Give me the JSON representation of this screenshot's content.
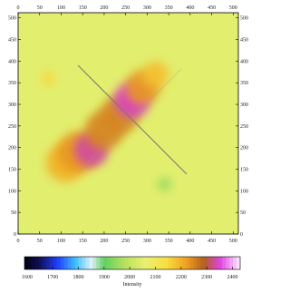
{
  "chart_data": {
    "type": "image",
    "xlim": [
      0,
      512
    ],
    "ylim": [
      0,
      512
    ],
    "xticks": [
      0,
      50,
      100,
      150,
      200,
      250,
      300,
      350,
      400,
      450,
      500
    ],
    "yticks": [
      0,
      50,
      100,
      150,
      200,
      250,
      300,
      350,
      400,
      450,
      500
    ],
    "background": 2050,
    "blobs": [
      {
        "x": 110,
        "y": 165,
        "r": 45,
        "intensity": 2200
      },
      {
        "x": 140,
        "y": 190,
        "r": 48,
        "intensity": 2230
      },
      {
        "x": 170,
        "y": 195,
        "r": 40,
        "intensity": 2330
      },
      {
        "x": 200,
        "y": 240,
        "r": 45,
        "intensity": 2250
      },
      {
        "x": 235,
        "y": 275,
        "r": 45,
        "intensity": 2250
      },
      {
        "x": 265,
        "y": 310,
        "r": 42,
        "intensity": 2340
      },
      {
        "x": 290,
        "y": 340,
        "r": 40,
        "intensity": 2230
      },
      {
        "x": 320,
        "y": 370,
        "r": 30,
        "intensity": 2180
      },
      {
        "x": 340,
        "y": 115,
        "r": 16,
        "intensity": 1950
      },
      {
        "x": 70,
        "y": 360,
        "r": 16,
        "intensity": 2150
      }
    ],
    "colorbar": {
      "label": "Intensity",
      "clim": [
        1590,
        2430
      ],
      "ticks": [
        1600,
        1700,
        1800,
        1900,
        2000,
        2100,
        2200,
        2300,
        2400
      ],
      "stops": [
        {
          "value": 1590,
          "color": "#000010"
        },
        {
          "value": 1650,
          "color": "#10105a"
        },
        {
          "value": 1720,
          "color": "#2040ff"
        },
        {
          "value": 1790,
          "color": "#40c0ff"
        },
        {
          "value": 1850,
          "color": "#e0f0ff"
        },
        {
          "value": 1900,
          "color": "#60d060"
        },
        {
          "value": 1980,
          "color": "#b8e060"
        },
        {
          "value": 2060,
          "color": "#e8f070"
        },
        {
          "value": 2140,
          "color": "#f8e040"
        },
        {
          "value": 2220,
          "color": "#f0a020"
        },
        {
          "value": 2290,
          "color": "#b06020"
        },
        {
          "value": 2350,
          "color": "#e040e0"
        },
        {
          "value": 2430,
          "color": "#fff0ff"
        }
      ]
    }
  }
}
